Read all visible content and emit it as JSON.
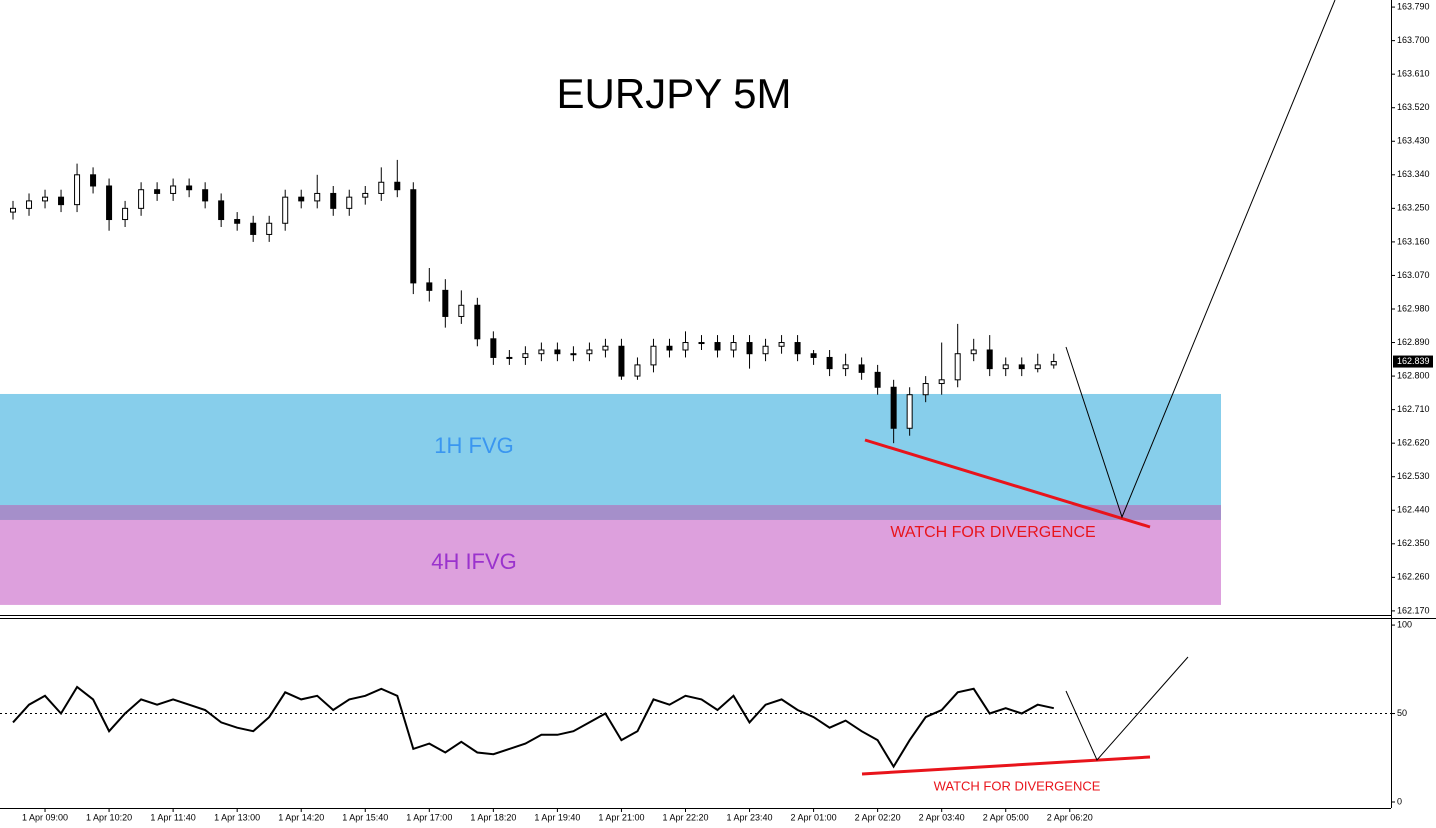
{
  "chart_data": [
    {
      "type": "candlestick",
      "title": "EURJPY 5M",
      "open": [
        163.24,
        163.25,
        163.27,
        163.28,
        163.26,
        163.34,
        163.31,
        163.22,
        163.25,
        163.3,
        163.29,
        163.31,
        163.3,
        163.27,
        163.22,
        163.21,
        163.18,
        163.21,
        163.28,
        163.27,
        163.29,
        163.25,
        163.28,
        163.29,
        163.32,
        163.3,
        163.05,
        163.03,
        162.96,
        162.99,
        162.9,
        162.85,
        162.85,
        162.86,
        162.87,
        162.86,
        162.86,
        162.87,
        162.88,
        162.8,
        162.83,
        162.88,
        162.87,
        162.89,
        162.89,
        162.87,
        162.89,
        162.86,
        162.88,
        162.89,
        162.86,
        162.85,
        162.82,
        162.83,
        162.81,
        162.77,
        162.66,
        162.75,
        162.78,
        162.79,
        162.86,
        162.87,
        162.82,
        162.83,
        162.82,
        162.83
      ],
      "high": [
        163.27,
        163.29,
        163.3,
        163.3,
        163.37,
        163.36,
        163.33,
        163.27,
        163.32,
        163.32,
        163.33,
        163.33,
        163.32,
        163.29,
        163.24,
        163.23,
        163.23,
        163.3,
        163.3,
        163.34,
        163.31,
        163.3,
        163.31,
        163.36,
        163.38,
        163.32,
        163.09,
        163.06,
        163.03,
        163.01,
        162.92,
        162.87,
        162.88,
        162.89,
        162.89,
        162.88,
        162.89,
        162.9,
        162.9,
        162.85,
        162.9,
        162.9,
        162.92,
        162.91,
        162.91,
        162.91,
        162.91,
        162.9,
        162.91,
        162.91,
        162.87,
        162.87,
        162.86,
        162.85,
        162.83,
        162.79,
        162.77,
        162.8,
        162.89,
        162.94,
        162.9,
        162.91,
        162.85,
        162.85,
        162.86,
        162.86
      ],
      "low": [
        163.22,
        163.23,
        163.25,
        163.24,
        163.24,
        163.29,
        163.19,
        163.2,
        163.23,
        163.27,
        163.27,
        163.28,
        163.25,
        163.2,
        163.19,
        163.16,
        163.16,
        163.19,
        163.25,
        163.25,
        163.23,
        163.23,
        163.26,
        163.27,
        163.28,
        163.02,
        163.0,
        162.93,
        162.94,
        162.88,
        162.83,
        162.83,
        162.83,
        162.84,
        162.84,
        162.84,
        162.84,
        162.85,
        162.79,
        162.79,
        162.81,
        162.85,
        162.85,
        162.87,
        162.85,
        162.85,
        162.82,
        162.84,
        162.86,
        162.84,
        162.83,
        162.8,
        162.8,
        162.79,
        162.75,
        162.62,
        162.64,
        162.73,
        162.75,
        162.77,
        162.84,
        162.8,
        162.8,
        162.8,
        162.81,
        162.82
      ],
      "close": [
        163.25,
        163.27,
        163.28,
        163.26,
        163.34,
        163.31,
        163.22,
        163.25,
        163.3,
        163.29,
        163.31,
        163.3,
        163.27,
        163.22,
        163.21,
        163.18,
        163.21,
        163.28,
        163.27,
        163.29,
        163.25,
        163.28,
        163.29,
        163.32,
        163.3,
        163.05,
        163.03,
        162.96,
        162.99,
        162.9,
        162.85,
        162.85,
        162.86,
        162.87,
        162.86,
        162.86,
        162.87,
        162.88,
        162.8,
        162.83,
        162.88,
        162.87,
        162.89,
        162.89,
        162.87,
        162.89,
        162.86,
        162.88,
        162.89,
        162.86,
        162.85,
        162.82,
        162.83,
        162.81,
        162.77,
        162.66,
        162.75,
        162.78,
        162.79,
        162.86,
        162.87,
        162.82,
        162.83,
        162.82,
        162.83,
        162.839
      ],
      "xlim": [
        -0.8125,
        86.0625
      ],
      "xticks": [
        {
          "value": 2,
          "label": "1 Apr 09:00"
        },
        {
          "value": 6,
          "label": "1 Apr 10:20"
        },
        {
          "value": 10,
          "label": "1 Apr 11:40"
        },
        {
          "value": 14,
          "label": "1 Apr 13:00"
        },
        {
          "value": 18,
          "label": "1 Apr 14:20"
        },
        {
          "value": 22,
          "label": "1 Apr 15:40"
        },
        {
          "value": 26,
          "label": "1 Apr 17:00"
        },
        {
          "value": 30,
          "label": "1 Apr 18:20"
        },
        {
          "value": 34,
          "label": "1 Apr 19:40"
        },
        {
          "value": 38,
          "label": "1 Apr 21:00"
        },
        {
          "value": 42,
          "label": "1 Apr 22:20"
        },
        {
          "value": 46,
          "label": "1 Apr 23:40"
        },
        {
          "value": 50,
          "label": "2 Apr 01:00"
        },
        {
          "value": 54,
          "label": "2 Apr 02:20"
        },
        {
          "value": 58,
          "label": "2 Apr 03:40"
        },
        {
          "value": 62,
          "label": "2 Apr 05:00"
        },
        {
          "value": 66,
          "label": "2 Apr 06:20"
        }
      ],
      "ylim": [
        162.159,
        163.809
      ],
      "yticks": [
        {
          "value": 162.17,
          "label": "162.170"
        },
        {
          "value": 162.26,
          "label": "162.260"
        },
        {
          "value": 162.35,
          "label": "162.350"
        },
        {
          "value": 162.44,
          "label": "162.440"
        },
        {
          "value": 162.53,
          "label": "162.530"
        },
        {
          "value": 162.62,
          "label": "162.620"
        },
        {
          "value": 162.71,
          "label": "162.710"
        },
        {
          "value": 162.8,
          "label": "162.800"
        },
        {
          "value": 162.89,
          "label": "162.890"
        },
        {
          "value": 162.98,
          "label": "162.980"
        },
        {
          "value": 163.07,
          "label": "163.070"
        },
        {
          "value": 163.16,
          "label": "163.160"
        },
        {
          "value": 163.25,
          "label": "163.250"
        },
        {
          "value": 163.34,
          "label": "163.340"
        },
        {
          "value": 163.43,
          "label": "163.430"
        },
        {
          "value": 163.52,
          "label": "163.520"
        },
        {
          "value": 163.61,
          "label": "163.610"
        },
        {
          "value": 163.7,
          "label": "163.700"
        },
        {
          "value": 163.79,
          "label": "163.790"
        }
      ],
      "zones": [
        {
          "label": "1H FVG",
          "range": [
            162.414,
            162.752
          ],
          "color": "#87ceeb",
          "text_color": "#3a96f0"
        },
        {
          "label": "4H IFVG",
          "range": [
            162.186,
            162.454
          ],
          "color": "#dda0dd",
          "text_color": "#9a32cd"
        }
      ],
      "overlap_color": "#a58fca",
      "annotation": "WATCH FOR DIVERGENCE"
    },
    {
      "type": "line",
      "values": [
        45,
        55,
        60,
        50,
        65,
        58,
        40,
        50,
        58,
        55,
        58,
        55,
        52,
        45,
        42,
        40,
        48,
        62,
        58,
        60,
        52,
        58,
        60,
        64,
        60,
        30,
        33,
        28,
        34,
        28,
        27,
        30,
        33,
        38,
        38,
        40,
        45,
        50,
        35,
        40,
        58,
        55,
        60,
        58,
        52,
        60,
        45,
        55,
        58,
        52,
        48,
        42,
        46,
        40,
        35,
        20,
        35,
        48,
        52,
        62,
        64,
        50,
        53,
        50,
        55,
        53
      ],
      "color": "#000000",
      "ylim": [
        -3.4,
        104
      ],
      "yticks": [
        0,
        50,
        100
      ],
      "grid_dotted": [
        50
      ],
      "annotation": "WATCH FOR DIVERGENCE"
    }
  ]
}
